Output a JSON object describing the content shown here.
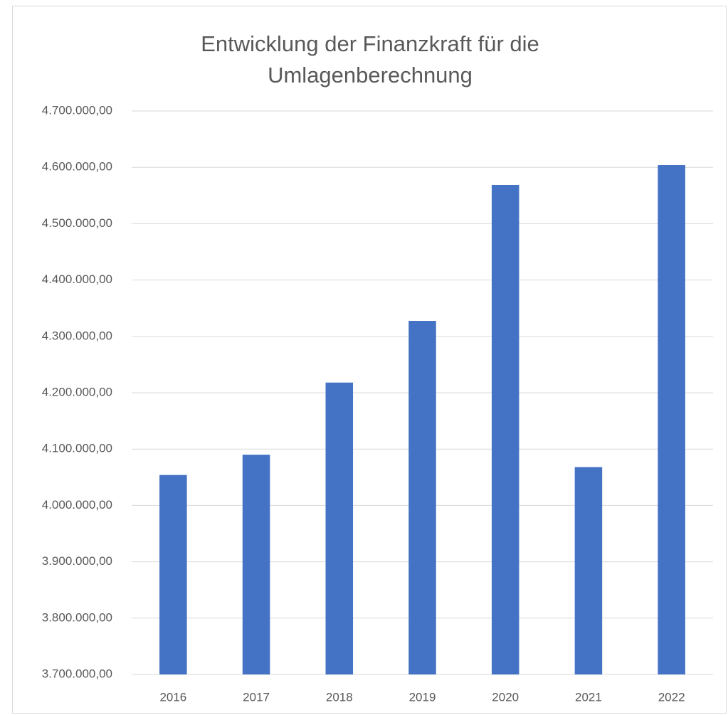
{
  "chart_data": {
    "type": "bar",
    "title": "Entwicklung der Finanzkraft für die Umlagenberechnung",
    "categories": [
      "2016",
      "2017",
      "2018",
      "2019",
      "2020",
      "2021",
      "2022"
    ],
    "values": [
      4054000,
      4090000,
      4218000,
      4327500,
      4568700,
      4068000,
      4604000
    ],
    "color": "#4472c4",
    "ylim": [
      3700000,
      4700000
    ],
    "yticks": [
      {
        "value": 3700000,
        "label": "3.700.000,00"
      },
      {
        "value": 3800000,
        "label": "3.800.000,00"
      },
      {
        "value": 3900000,
        "label": "3.900.000,00"
      },
      {
        "value": 4000000,
        "label": "4.000.000,00"
      },
      {
        "value": 4100000,
        "label": "4.100.000,00"
      },
      {
        "value": 4200000,
        "label": "4.200.000,00"
      },
      {
        "value": 4300000,
        "label": "4.300.000,00"
      },
      {
        "value": 4400000,
        "label": "4.400.000,00"
      },
      {
        "value": 4500000,
        "label": "4.500.000,00"
      },
      {
        "value": 4600000,
        "label": "4.600.000,00"
      },
      {
        "value": 4700000,
        "label": "4.700.000,00"
      }
    ],
    "grid": true
  }
}
